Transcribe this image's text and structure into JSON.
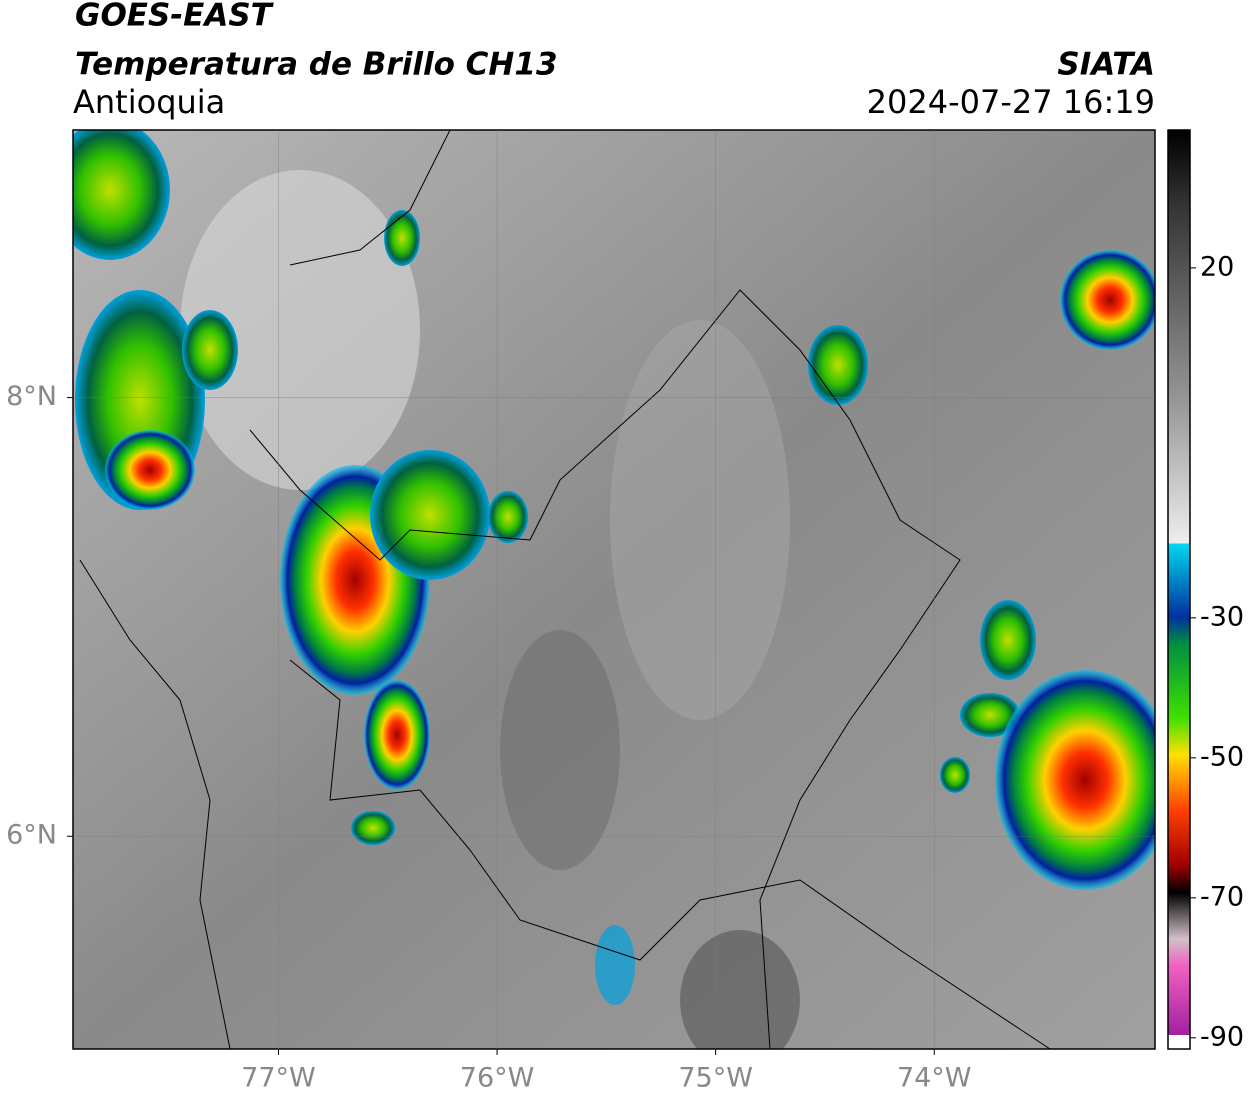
{
  "header": {
    "title": "GOES-EAST",
    "subtitle": "Temperatura de Brillo CH13",
    "region": "Antioquia",
    "source": "SIATA",
    "datetime": "2024-07-27 16:19"
  },
  "map": {
    "xlim": [
      -77.94,
      -72.99
    ],
    "ylim": [
      5.03,
      9.22
    ],
    "lon_ticks": [
      {
        "value": -77,
        "label": "77°W"
      },
      {
        "value": -76,
        "label": "76°W"
      },
      {
        "value": -75,
        "label": "75°W"
      },
      {
        "value": -74,
        "label": "74°W"
      }
    ],
    "lat_ticks": [
      {
        "value": 8,
        "label": "8°N"
      },
      {
        "value": 6,
        "label": "6°N"
      }
    ]
  },
  "colorbar": {
    "lim": [
      -91.6,
      39.7
    ],
    "ticks": [
      20,
      -30,
      -50,
      -70,
      -90
    ]
  }
}
